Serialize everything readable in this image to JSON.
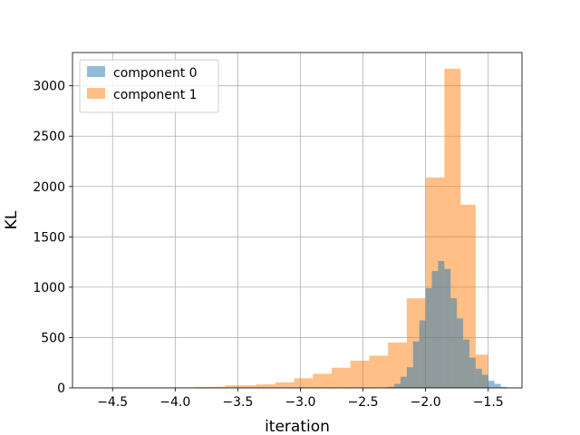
{
  "chart_data": {
    "type": "bar",
    "subtype": "overlapping-histogram",
    "xlabel": "iteration",
    "ylabel": "KL",
    "xlim": [
      -4.82,
      -1.23
    ],
    "ylim": [
      0,
      3330
    ],
    "x_ticks": [
      -4.5,
      -4.0,
      -3.5,
      -3.0,
      -2.5,
      -2.0,
      -1.5
    ],
    "x_tick_labels": [
      "−4.5",
      "−4.0",
      "−3.5",
      "−3.0",
      "−2.5",
      "−2.0",
      "−1.5"
    ],
    "y_ticks": [
      0,
      500,
      1000,
      1500,
      2000,
      2500,
      3000
    ],
    "y_tick_labels": [
      "0",
      "500",
      "1000",
      "1500",
      "2000",
      "2500",
      "3000"
    ],
    "grid": true,
    "legend_position": "top-left",
    "series": [
      {
        "name": "component 1",
        "color": "#ff7f0e",
        "opacity": 0.5,
        "bins": [
          {
            "x0": -4.6,
            "x1": -4.475,
            "count": 3
          },
          {
            "x0": -4.475,
            "x1": -4.35,
            "count": 3
          },
          {
            "x0": -4.35,
            "x1": -4.225,
            "count": 3
          },
          {
            "x0": -4.225,
            "x1": -4.1,
            "count": 3
          },
          {
            "x0": -4.1,
            "x1": -3.975,
            "count": 3
          },
          {
            "x0": -3.975,
            "x1": -3.85,
            "count": 5
          },
          {
            "x0": -3.85,
            "x1": -3.725,
            "count": 8
          },
          {
            "x0": -3.725,
            "x1": -3.6,
            "count": 10
          },
          {
            "x0": -3.6,
            "x1": -3.35,
            "count": 25
          },
          {
            "x0": -3.35,
            "x1": -3.2,
            "count": 35
          },
          {
            "x0": -3.2,
            "x1": -3.05,
            "count": 55
          },
          {
            "x0": -3.05,
            "x1": -2.9,
            "count": 95
          },
          {
            "x0": -2.9,
            "x1": -2.75,
            "count": 140
          },
          {
            "x0": -2.75,
            "x1": -2.6,
            "count": 200
          },
          {
            "x0": -2.6,
            "x1": -2.45,
            "count": 270
          },
          {
            "x0": -2.45,
            "x1": -2.3,
            "count": 320
          },
          {
            "x0": -2.3,
            "x1": -2.15,
            "count": 450
          },
          {
            "x0": -2.15,
            "x1": -2.0,
            "count": 890
          },
          {
            "x0": -2.0,
            "x1": -1.85,
            "count": 2090
          },
          {
            "x0": -1.85,
            "x1": -1.72,
            "count": 3170
          },
          {
            "x0": -1.72,
            "x1": -1.6,
            "count": 1820
          },
          {
            "x0": -1.6,
            "x1": -1.5,
            "count": 330
          }
        ]
      },
      {
        "name": "component 0",
        "color": "#1f77b4",
        "opacity": 0.5,
        "bins": [
          {
            "x0": -2.3,
            "x1": -2.25,
            "count": 10
          },
          {
            "x0": -2.25,
            "x1": -2.2,
            "count": 40
          },
          {
            "x0": -2.2,
            "x1": -2.15,
            "count": 110
          },
          {
            "x0": -2.15,
            "x1": -2.1,
            "count": 205
          },
          {
            "x0": -2.1,
            "x1": -2.05,
            "count": 460
          },
          {
            "x0": -2.05,
            "x1": -2.0,
            "count": 670
          },
          {
            "x0": -2.0,
            "x1": -1.95,
            "count": 990
          },
          {
            "x0": -1.95,
            "x1": -1.9,
            "count": 1160
          },
          {
            "x0": -1.9,
            "x1": -1.85,
            "count": 1260
          },
          {
            "x0": -1.85,
            "x1": -1.8,
            "count": 1180
          },
          {
            "x0": -1.8,
            "x1": -1.75,
            "count": 890
          },
          {
            "x0": -1.75,
            "x1": -1.7,
            "count": 690
          },
          {
            "x0": -1.7,
            "x1": -1.65,
            "count": 480
          },
          {
            "x0": -1.65,
            "x1": -1.6,
            "count": 300
          },
          {
            "x0": -1.6,
            "x1": -1.55,
            "count": 190
          },
          {
            "x0": -1.55,
            "x1": -1.5,
            "count": 130
          },
          {
            "x0": -1.5,
            "x1": -1.45,
            "count": 70
          },
          {
            "x0": -1.45,
            "x1": -1.4,
            "count": 40
          },
          {
            "x0": -1.4,
            "x1": -1.35,
            "count": 10
          }
        ]
      }
    ],
    "legend": [
      {
        "label": "component 0",
        "color": "#1f77b4"
      },
      {
        "label": "component 1",
        "color": "#ff7f0e"
      }
    ]
  }
}
